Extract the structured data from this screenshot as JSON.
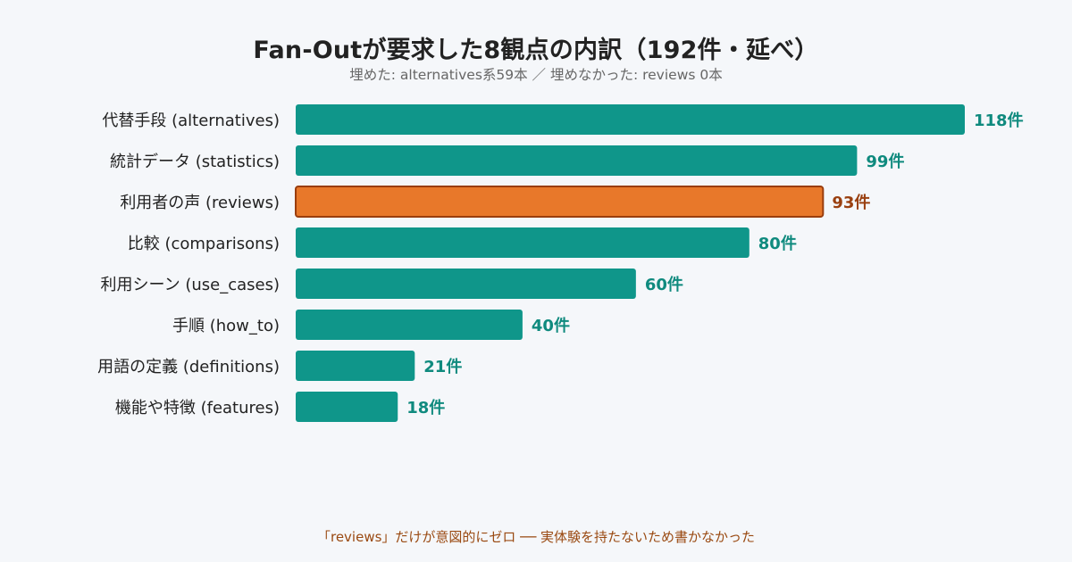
{
  "header": {
    "title": "Fan-Outが要求した8観点の内訳（192件・延べ）",
    "subtitle": "埋めた: alternatives系59本 ／ 埋めなかった: reviews 0本"
  },
  "footnote": "「reviews」だけが意図的にゼロ ── 実体験を持たないため書かなかった",
  "colors": {
    "bar": "#0f968a",
    "bar_highlight": "#e8782a",
    "bar_highlight_stroke": "#9a3e0e",
    "value_label": "#0f8a7e",
    "value_label_highlight": "#9a4010",
    "category_label": "#222222"
  },
  "chart_data": {
    "type": "bar",
    "orientation": "horizontal",
    "categories": [
      "代替手段 (alternatives)",
      "統計データ (statistics)",
      "利用者の声 (reviews)",
      "比較 (comparisons)",
      "利用シーン (use_cases)",
      "手順 (how_to)",
      "用語の定義 (definitions)",
      "機能や特徴 (features)"
    ],
    "values": [
      118,
      99,
      93,
      80,
      60,
      40,
      21,
      18
    ],
    "value_labels": [
      "118件",
      "99件",
      "93件",
      "80件",
      "60件",
      "40件",
      "21件",
      "18件"
    ],
    "highlight_index": 2,
    "xlim": [
      0,
      118
    ],
    "grid": false,
    "legend": "none"
  }
}
